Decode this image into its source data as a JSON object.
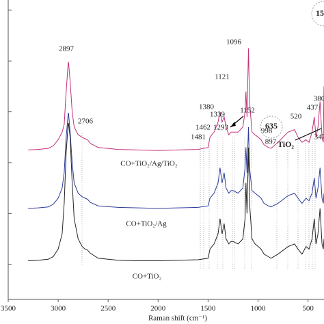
{
  "chart_data": {
    "type": "line",
    "x_label": "Raman shift (cm⁻¹)",
    "x": [
      3300,
      3200,
      3100,
      3050,
      3000,
      2960,
      2940,
      2920,
      2900,
      2897,
      2880,
      2860,
      2840,
      2800,
      2760,
      2730,
      2706,
      2680,
      2600,
      2400,
      2200,
      2000,
      1800,
      1600,
      1500,
      1481,
      1462,
      1440,
      1400,
      1380,
      1360,
      1339,
      1320,
      1293,
      1270,
      1250,
      1200,
      1152,
      1130,
      1121,
      1110,
      1096,
      1085,
      1060,
      1030,
      998,
      970,
      940,
      897,
      870,
      800,
      700,
      635,
      600,
      560,
      520,
      490,
      460,
      437,
      420,
      400,
      380,
      360,
      347,
      340
    ],
    "series": [
      {
        "name": "CO+TiO₂/Ag/TiO₂",
        "color": "#c0307a",
        "values": [
          2.25,
          2.26,
          2.28,
          2.33,
          2.45,
          2.6,
          2.75,
          3.4,
          3.95,
          3.98,
          3.6,
          3.0,
          2.7,
          2.55,
          2.5,
          2.47,
          2.45,
          2.38,
          2.3,
          2.26,
          2.25,
          2.24,
          2.25,
          2.26,
          2.3,
          2.5,
          2.55,
          2.6,
          2.8,
          3.0,
          2.8,
          2.9,
          2.7,
          2.55,
          2.6,
          2.6,
          2.6,
          2.7,
          3.0,
          3.4,
          2.9,
          4.25,
          3.2,
          2.6,
          2.55,
          2.5,
          2.45,
          2.35,
          2.3,
          2.28,
          2.4,
          2.6,
          2.65,
          2.5,
          2.4,
          2.45,
          2.4,
          2.6,
          2.9,
          2.5,
          2.7,
          3.2,
          2.5,
          2.4,
          3.5
        ]
      },
      {
        "name": "CO+TiO₂/Ag",
        "color": "#2a3a9a",
        "values": [
          1.1,
          1.11,
          1.13,
          1.18,
          1.3,
          1.5,
          1.8,
          2.5,
          2.95,
          2.98,
          2.6,
          2.0,
          1.6,
          1.4,
          1.33,
          1.3,
          1.28,
          1.22,
          1.15,
          1.12,
          1.11,
          1.1,
          1.11,
          1.12,
          1.15,
          1.3,
          1.35,
          1.4,
          1.6,
          1.9,
          1.6,
          1.8,
          1.5,
          1.4,
          1.45,
          1.45,
          1.4,
          1.5,
          1.9,
          2.3,
          1.8,
          2.7,
          1.9,
          1.45,
          1.4,
          1.35,
          1.3,
          1.2,
          1.15,
          1.13,
          1.2,
          1.35,
          1.4,
          1.3,
          1.2,
          1.3,
          1.25,
          1.4,
          1.7,
          1.3,
          1.5,
          1.9,
          1.3,
          1.2,
          1.4
        ]
      },
      {
        "name": "CO+TiO₂",
        "color": "#222222",
        "values": [
          0.07,
          0.08,
          0.1,
          0.15,
          0.3,
          0.6,
          1.2,
          2.2,
          2.75,
          2.78,
          2.5,
          1.6,
          0.9,
          0.5,
          0.35,
          0.3,
          0.28,
          0.22,
          0.12,
          0.08,
          0.07,
          0.07,
          0.08,
          0.09,
          0.12,
          0.3,
          0.35,
          0.4,
          0.6,
          0.9,
          0.6,
          0.8,
          0.5,
          0.4,
          0.45,
          0.45,
          0.4,
          0.5,
          0.9,
          1.6,
          1.0,
          2.3,
          1.2,
          0.5,
          0.4,
          0.35,
          0.3,
          0.2,
          0.15,
          0.12,
          0.2,
          0.35,
          0.4,
          0.3,
          0.2,
          0.35,
          0.3,
          0.5,
          0.9,
          0.4,
          0.6,
          1.1,
          0.4,
          0.3,
          0.5
        ]
      }
    ],
    "xlim": [
      3500,
      340
    ],
    "xticks": [
      3500,
      3000,
      2500,
      2000,
      1500,
      1000,
      500
    ],
    "ylim": [
      -0.69,
      5.2
    ],
    "yticks": [
      0,
      1,
      2,
      3,
      4,
      5
    ],
    "annotations": [
      "2897",
      "2706",
      "1096",
      "1121",
      "1380",
      "1339",
      "1152",
      "1462",
      "1481",
      "1293",
      "998",
      "897",
      "635",
      "520",
      "437",
      "380",
      "347",
      "TiO₂",
      "15"
    ]
  }
}
